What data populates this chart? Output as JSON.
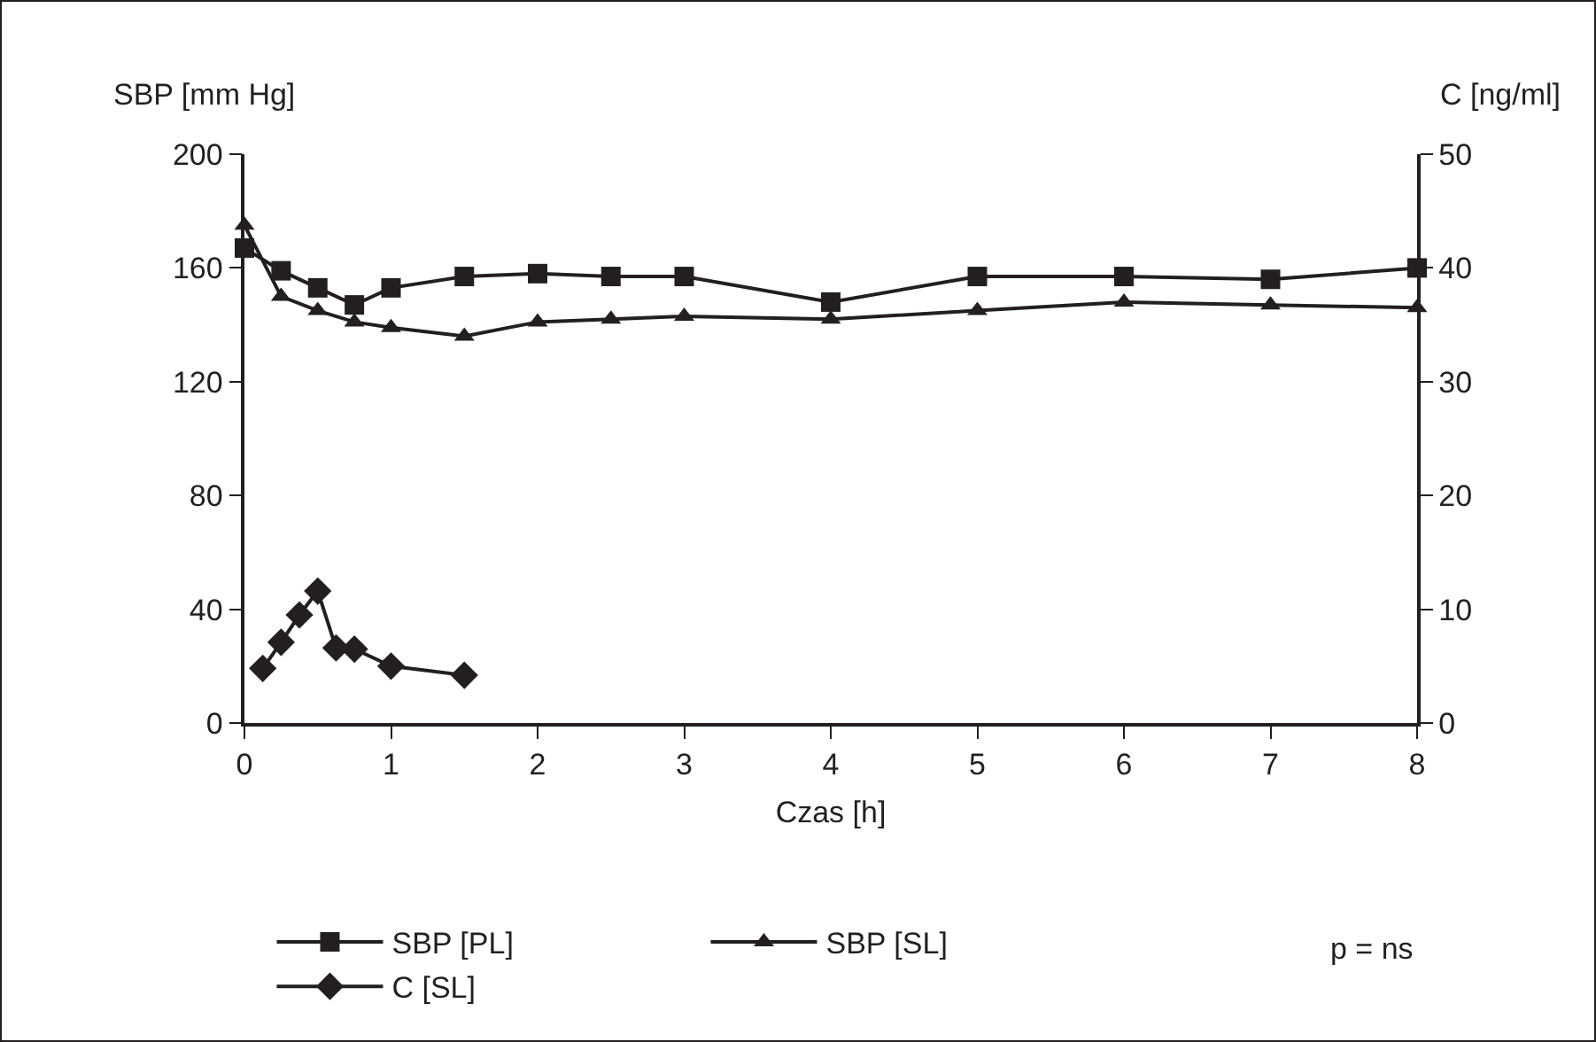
{
  "chart_data": {
    "type": "line",
    "xlabel": "Czas [h]",
    "ylabel": "SBP [mm Hg]",
    "y2label": "C [ng/ml]",
    "xlim": [
      0,
      8
    ],
    "xticks": [
      0,
      1,
      2,
      3,
      4,
      5,
      6,
      7,
      8
    ],
    "ylim": [
      0,
      200
    ],
    "yticks": [
      0,
      40,
      80,
      120,
      160,
      200
    ],
    "y2lim": [
      0,
      50
    ],
    "y2ticks": [
      0,
      10,
      20,
      30,
      40,
      50
    ],
    "grid": false,
    "legend": "bottom",
    "line_style": "solid",
    "series": [
      {
        "name": "SBP [PL]",
        "color": "#231f20",
        "marker": "square",
        "x": [
          0,
          0.25,
          0.5,
          0.75,
          1,
          1.5,
          2,
          2.5,
          3,
          4,
          5,
          6,
          7,
          8
        ],
        "values": [
          167,
          159,
          153,
          147,
          153,
          157,
          158,
          157,
          157,
          148,
          157,
          157,
          156,
          160
        ]
      },
      {
        "name": "SBP [SL]",
        "color": "#231f20",
        "marker": "triangle",
        "x": [
          0,
          0.25,
          0.5,
          0.75,
          1,
          1.5,
          2,
          2.5,
          3,
          4,
          5,
          6,
          7,
          8
        ],
        "values": [
          175,
          150,
          145,
          141,
          139,
          136,
          141,
          142,
          143,
          142,
          145,
          148,
          147,
          146
        ]
      },
      {
        "name": "C [SL]",
        "color": "#231f20",
        "marker": "diamond",
        "axis": "y2",
        "x": [
          0.125,
          0.25,
          0.375,
          0.5,
          0.625,
          0.75,
          1,
          1.5
        ],
        "values": [
          4.8,
          7.1,
          9.5,
          11.6,
          6.6,
          6.5,
          5.0,
          4.2
        ]
      }
    ],
    "annotations": [
      "p = ns"
    ]
  }
}
